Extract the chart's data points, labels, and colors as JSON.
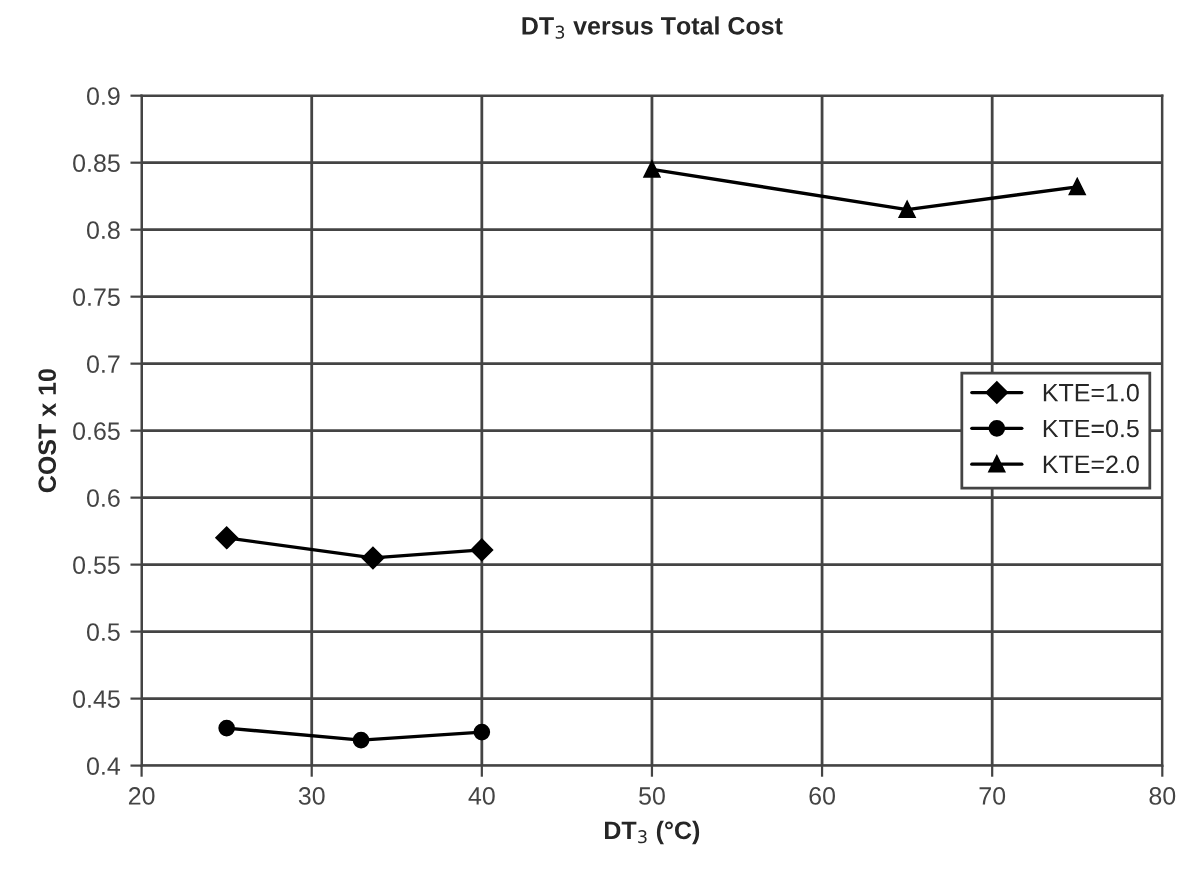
{
  "chart_data": {
    "type": "line",
    "title": "DT$_{3}$ versus Total Cost",
    "xlabel": "DT$_{3}$ (°C)",
    "ylabel": "COST x 10",
    "xlim": [
      20,
      80
    ],
    "xticks": [
      20,
      30,
      40,
      50,
      60,
      70,
      80
    ],
    "ylim": [
      0.4,
      0.9
    ],
    "yticks": [
      0.4,
      0.45,
      0.5,
      0.55,
      0.6,
      0.65,
      0.7,
      0.75,
      0.8,
      0.85,
      0.9
    ],
    "grid": true,
    "legend": "right",
    "line_style": "solid",
    "series": [
      {
        "name": "KTE=1.0",
        "color": "#000000",
        "marker": "diamond",
        "x": [
          25,
          33.6,
          40
        ],
        "values": [
          0.57,
          0.555,
          0.561
        ]
      },
      {
        "name": "KTE=0.5",
        "color": "#000000",
        "marker": "circle",
        "x": [
          25,
          32.9,
          40
        ],
        "values": [
          0.428,
          0.419,
          0.425
        ]
      },
      {
        "name": "KTE=2.0",
        "color": "#000000",
        "marker": "triangle",
        "x": [
          50,
          65,
          75
        ],
        "values": [
          0.845,
          0.815,
          0.832
        ]
      }
    ]
  }
}
